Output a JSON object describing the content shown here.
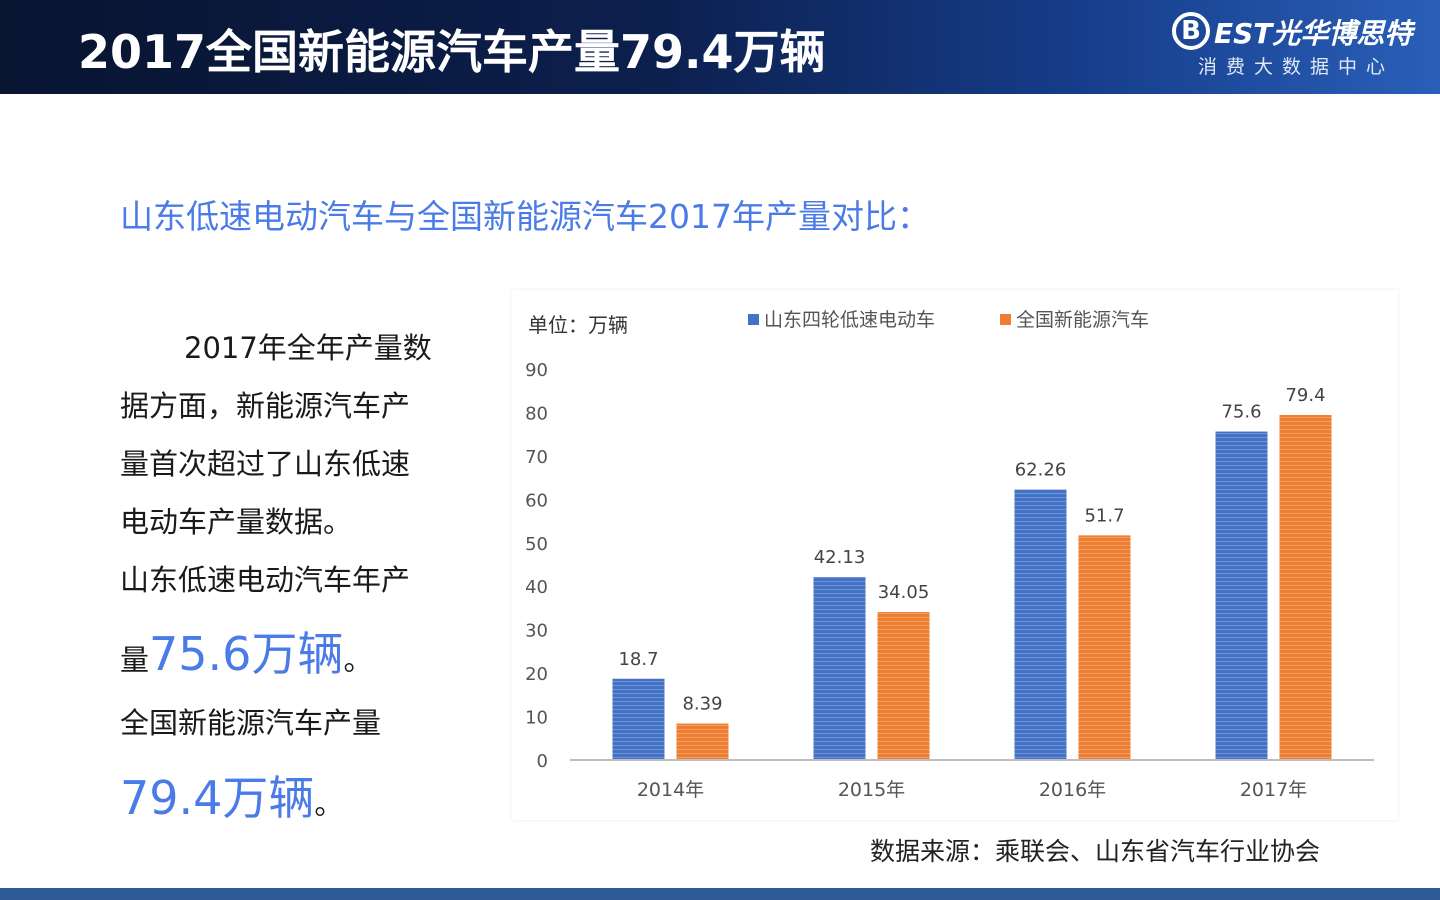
{
  "header": {
    "title": "2017全国新能源汽车产量79.4万辆",
    "brand_letter": "B",
    "brand_name": "EST光华博思特",
    "brand_sub": "消费大数据中心"
  },
  "subtitle": "山东低速电动汽车与全国新能源汽车2017年产量对比：",
  "text": {
    "line1": "2017年全年产量数",
    "line2": "据方面，新能源汽车产",
    "line3": "量首次超过了山东低速",
    "line4": "电动车产量数据。",
    "line5": "山东低速电动汽车年产",
    "line6_prefix": "量",
    "line6_value": "75.6万辆",
    "line6_suffix": "。",
    "line7": "全国新能源汽车产量",
    "line8_value": "79.4万辆",
    "line8_suffix": "。"
  },
  "source": "数据来源：乘联会、山东省汽车行业协会",
  "colors": {
    "series1": "#4472c4",
    "series2": "#ed7d31",
    "accent": "#4a7be6"
  },
  "chart_data": {
    "type": "bar",
    "unit_label": "单位：万辆",
    "categories": [
      "2014年",
      "2015年",
      "2016年",
      "2017年"
    ],
    "series": [
      {
        "name": "山东四轮低速电动车",
        "values": [
          18.7,
          42.13,
          62.26,
          75.6
        ]
      },
      {
        "name": "全国新能源汽车",
        "values": [
          8.39,
          34.05,
          51.7,
          79.4
        ]
      }
    ],
    "ylim": [
      0,
      90
    ],
    "yticks": [
      0,
      10,
      20,
      30,
      40,
      50,
      60,
      70,
      80,
      90
    ],
    "legend": "top",
    "grid": false
  }
}
